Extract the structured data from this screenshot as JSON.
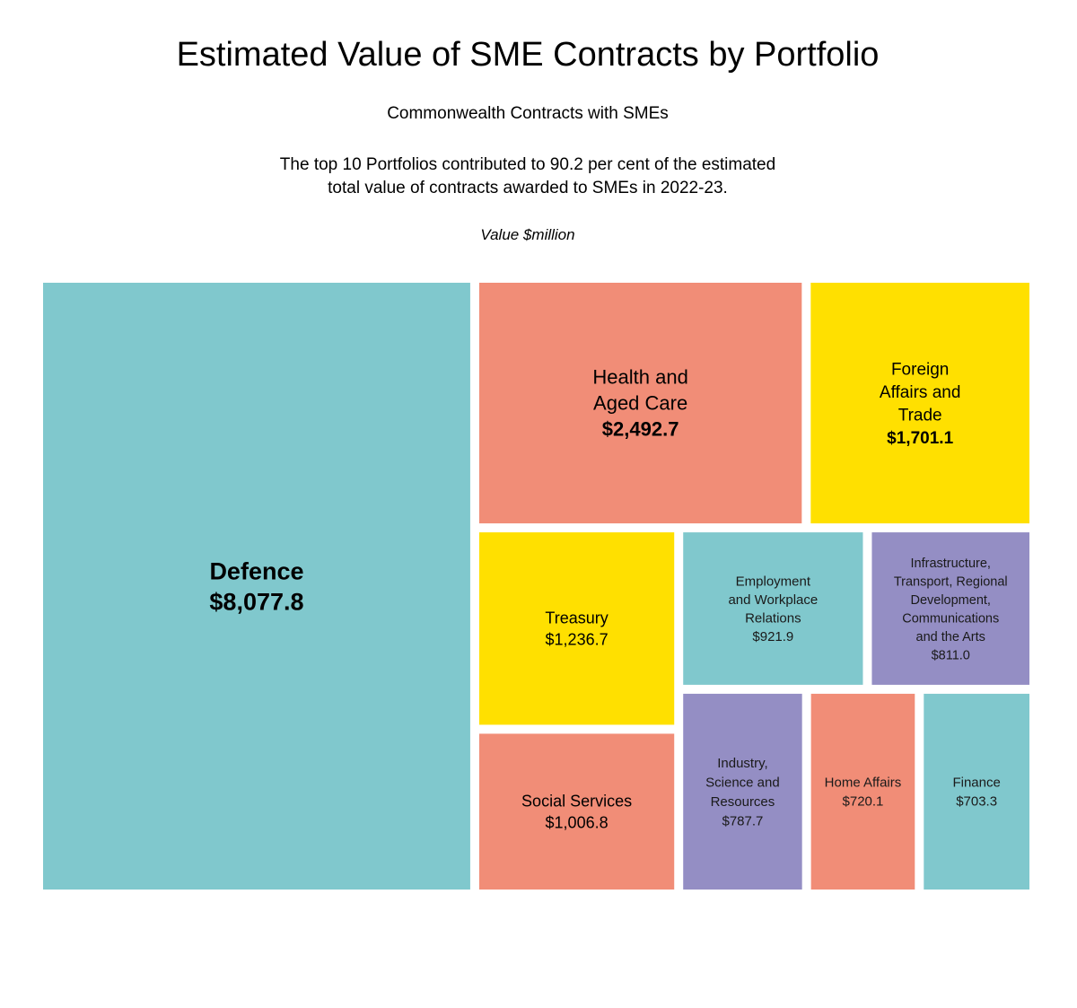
{
  "chart_data": {
    "type": "treemap",
    "title": "Estimated Value of SME Contracts by Portfolio",
    "subtitle": "Commonwealth Contracts with SMEs",
    "description_lines": [
      "The top 10 Portfolios contributed to 90.2 per cent of the estimated",
      "total value of contracts awarded to SMEs in 2022-23."
    ],
    "unit_label": "Value $million",
    "items": [
      {
        "name": "Defence",
        "label_lines": [
          "Defence"
        ],
        "value": 8077.8,
        "value_label": "$8,077.8",
        "color": "#80C8CD"
      },
      {
        "name": "Health and Aged Care",
        "label_lines": [
          "Health and",
          "Aged Care"
        ],
        "value": 2492.7,
        "value_label": "$2,492.7",
        "color": "#F18D77"
      },
      {
        "name": "Foreign Affairs and Trade",
        "label_lines": [
          "Foreign",
          "Affairs and",
          "Trade"
        ],
        "value": 1701.1,
        "value_label": "$1,701.1",
        "color": "#FFE000"
      },
      {
        "name": "Treasury",
        "label_lines": [
          "Treasury"
        ],
        "value": 1236.7,
        "value_label": "$1,236.7",
        "color": "#FFE000"
      },
      {
        "name": "Social Services",
        "label_lines": [
          "Social Services"
        ],
        "value": 1006.8,
        "value_label": "$1,006.8",
        "color": "#F18D77"
      },
      {
        "name": "Employment and Workplace Relations",
        "label_lines": [
          "Employment",
          "and Workplace",
          "Relations"
        ],
        "value": 921.9,
        "value_label": "$921.9",
        "color": "#80C8CD"
      },
      {
        "name": "Infrastructure, Transport, Regional Development, Communications and the Arts",
        "label_lines": [
          "Infrastructure,",
          "Transport, Regional",
          "Development,",
          "Communications",
          "and the Arts"
        ],
        "value": 811.0,
        "value_label": "$811.0",
        "color": "#948EC4"
      },
      {
        "name": "Industry, Science and Resources",
        "label_lines": [
          "Industry,",
          "Science and",
          "Resources"
        ],
        "value": 787.7,
        "value_label": "$787.7",
        "color": "#948EC4"
      },
      {
        "name": "Home Affairs",
        "label_lines": [
          "Home Affairs"
        ],
        "value": 720.1,
        "value_label": "$720.1",
        "color": "#F18D77"
      },
      {
        "name": "Finance",
        "label_lines": [
          "Finance"
        ],
        "value": 703.3,
        "value_label": "$703.3",
        "color": "#80C8CD"
      }
    ]
  }
}
